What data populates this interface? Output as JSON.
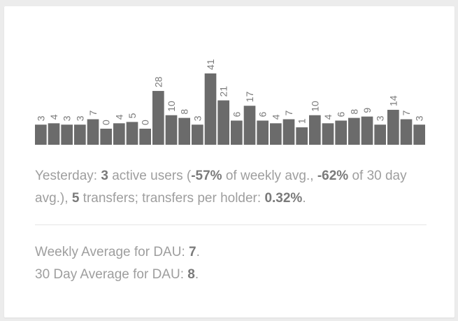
{
  "chart_data": {
    "type": "bar",
    "values": [
      3,
      4,
      3,
      3,
      7,
      0,
      4,
      5,
      0,
      28,
      10,
      8,
      3,
      41,
      21,
      6,
      17,
      6,
      4,
      7,
      1,
      10,
      4,
      6,
      8,
      9,
      3,
      14,
      7,
      3
    ],
    "bar_color": "#6b6b6b",
    "label_color": "#7a7a7a",
    "axes": "none",
    "grid": false,
    "data_labels": "rotated above each bar"
  },
  "yesterday": {
    "prefix": "Yesterday: ",
    "active_users": "3",
    "active_users_suffix": " active users (",
    "weekly_pct": "-57%",
    "weekly_suffix": " of weekly avg., ",
    "thirty_day_pct": "-62%",
    "thirty_day_suffix": " of 30 day avg.), ",
    "transfers": "5",
    "transfers_suffix": " transfers; transfers per holder: ",
    "transfers_per_holder": "0.32%",
    "end": "."
  },
  "averages": {
    "weekly_label": "Weekly Average for DAU: ",
    "weekly_value": "7",
    "thirty_day_label": "30 Day Average for DAU: ",
    "thirty_day_value": "8",
    "end": "."
  },
  "colors": {
    "background": "#ececec",
    "card": "#ffffff",
    "text": "#9e9e9e",
    "emphasis": "#7a7a7a",
    "divider": "#e6e6e6"
  }
}
